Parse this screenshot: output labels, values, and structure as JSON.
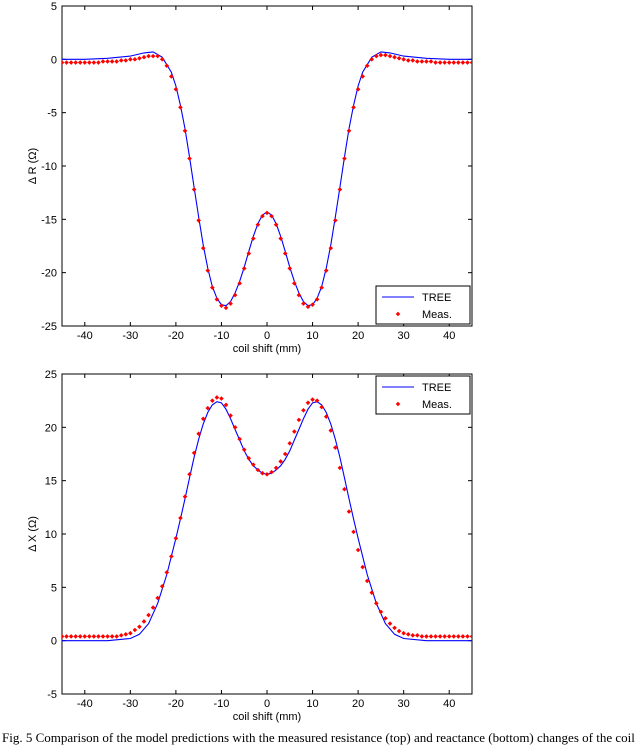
{
  "chart_data": [
    {
      "type": "line",
      "xlabel": "coil shift (mm)",
      "ylabel": "Δ R (Ω)",
      "xlim": [
        -45,
        45
      ],
      "ylim": [
        -25,
        5
      ],
      "xticks": [
        -40,
        -30,
        -20,
        -10,
        0,
        10,
        20,
        30,
        40
      ],
      "yticks": [
        -25,
        -20,
        -15,
        -10,
        -5,
        0,
        5
      ],
      "grid": false,
      "legend_position": "bottom-right",
      "series": [
        {
          "name": "TREE",
          "style": "line",
          "color": "#0000ff",
          "x": [
            -45,
            -40,
            -35,
            -30,
            -27,
            -25,
            -23,
            -21,
            -20,
            -19,
            -18,
            -17,
            -16,
            -15,
            -14,
            -13,
            -12,
            -11,
            -10,
            -9,
            -8,
            -7,
            -6,
            -5,
            -4,
            -3,
            -2,
            -1,
            0,
            1,
            2,
            3,
            4,
            5,
            6,
            7,
            8,
            9,
            10,
            11,
            12,
            13,
            14,
            15,
            16,
            17,
            18,
            19,
            20,
            21,
            23,
            25,
            27,
            30,
            35,
            40,
            45
          ],
          "y": [
            0.0,
            0.0,
            0.1,
            0.3,
            0.6,
            0.7,
            0.2,
            -1.2,
            -2.5,
            -4.3,
            -6.5,
            -9.2,
            -12.0,
            -14.8,
            -17.4,
            -19.6,
            -21.3,
            -22.4,
            -23.0,
            -23.1,
            -22.7,
            -21.9,
            -20.8,
            -19.5,
            -18.0,
            -16.6,
            -15.4,
            -14.6,
            -14.3,
            -14.6,
            -15.4,
            -16.6,
            -18.0,
            -19.5,
            -20.8,
            -21.9,
            -22.7,
            -23.1,
            -23.0,
            -22.4,
            -21.3,
            -19.6,
            -17.4,
            -14.8,
            -12.0,
            -9.2,
            -6.5,
            -4.3,
            -2.5,
            -1.2,
            0.2,
            0.7,
            0.6,
            0.3,
            0.1,
            0.0,
            0.0
          ]
        },
        {
          "name": "Meas.",
          "style": "marker",
          "color": "#ff0000",
          "x": [
            -45,
            -44,
            -43,
            -42,
            -41,
            -40,
            -39,
            -38,
            -37,
            -36,
            -35,
            -34,
            -33,
            -32,
            -31,
            -30,
            -29,
            -28,
            -27,
            -26,
            -25,
            -24,
            -23,
            -22,
            -21,
            -20,
            -19,
            -18,
            -17,
            -16,
            -15,
            -14,
            -13,
            -12,
            -11,
            -10,
            -9,
            -8,
            -7,
            -6,
            -5,
            -4,
            -3,
            -2,
            -1,
            0,
            1,
            2,
            3,
            4,
            5,
            6,
            7,
            8,
            9,
            10,
            11,
            12,
            13,
            14,
            15,
            16,
            17,
            18,
            19,
            20,
            21,
            22,
            23,
            24,
            25,
            26,
            27,
            28,
            29,
            30,
            31,
            32,
            33,
            34,
            35,
            36,
            37,
            38,
            39,
            40,
            41,
            42,
            43,
            44,
            45
          ],
          "y": [
            -0.3,
            -0.3,
            -0.3,
            -0.3,
            -0.3,
            -0.3,
            -0.3,
            -0.3,
            -0.3,
            -0.2,
            -0.2,
            -0.2,
            -0.2,
            -0.1,
            -0.1,
            0.0,
            0.0,
            0.1,
            0.2,
            0.3,
            0.3,
            0.3,
            0.0,
            -0.6,
            -1.6,
            -2.8,
            -4.5,
            -6.7,
            -9.3,
            -12.2,
            -15.1,
            -17.7,
            -19.8,
            -21.4,
            -22.5,
            -23.1,
            -23.3,
            -22.9,
            -22.1,
            -21.0,
            -19.6,
            -18.2,
            -16.8,
            -15.5,
            -14.7,
            -14.4,
            -14.7,
            -15.5,
            -16.8,
            -18.2,
            -19.6,
            -21.0,
            -22.1,
            -22.9,
            -23.2,
            -23.0,
            -22.5,
            -21.4,
            -19.8,
            -17.7,
            -15.1,
            -12.2,
            -9.3,
            -6.7,
            -4.5,
            -2.8,
            -1.6,
            -0.6,
            0.0,
            0.3,
            0.4,
            0.4,
            0.3,
            0.2,
            0.1,
            0.0,
            -0.1,
            -0.1,
            -0.2,
            -0.2,
            -0.2,
            -0.2,
            -0.3,
            -0.3,
            -0.3,
            -0.3,
            -0.3,
            -0.3,
            -0.3,
            -0.3,
            -0.3
          ]
        }
      ]
    },
    {
      "type": "line",
      "xlabel": "coil shift (mm)",
      "ylabel": "Δ X (Ω)",
      "xlim": [
        -45,
        45
      ],
      "ylim": [
        -5,
        25
      ],
      "xticks": [
        -40,
        -30,
        -20,
        -10,
        0,
        10,
        20,
        30,
        40
      ],
      "yticks": [
        -5,
        0,
        5,
        10,
        15,
        20,
        25
      ],
      "grid": false,
      "legend_position": "top-right",
      "series": [
        {
          "name": "TREE",
          "style": "line",
          "color": "#0000ff",
          "x": [
            -45,
            -40,
            -35,
            -30,
            -28,
            -26,
            -24,
            -22,
            -20,
            -19,
            -18,
            -17,
            -16,
            -15,
            -14,
            -13,
            -12,
            -11,
            -10,
            -9,
            -8,
            -7,
            -6,
            -5,
            -4,
            -3,
            -2,
            -1,
            0,
            1,
            2,
            3,
            4,
            5,
            6,
            7,
            8,
            9,
            10,
            11,
            12,
            13,
            14,
            15,
            16,
            17,
            18,
            19,
            20,
            22,
            24,
            26,
            28,
            30,
            35,
            40,
            45
          ],
          "y": [
            0.0,
            0.0,
            0.0,
            0.2,
            0.6,
            1.6,
            3.5,
            6.2,
            9.6,
            11.4,
            13.3,
            15.3,
            17.2,
            18.9,
            20.3,
            21.4,
            22.1,
            22.4,
            22.3,
            21.7,
            20.8,
            19.8,
            18.8,
            17.8,
            17.0,
            16.4,
            16.0,
            15.7,
            15.6,
            15.7,
            16.0,
            16.4,
            17.0,
            17.8,
            18.8,
            19.8,
            20.8,
            21.7,
            22.3,
            22.4,
            22.1,
            21.4,
            20.3,
            18.9,
            17.2,
            15.3,
            13.3,
            11.4,
            9.6,
            6.2,
            3.5,
            1.6,
            0.6,
            0.2,
            0.0,
            0.0,
            0.0
          ]
        },
        {
          "name": "Meas.",
          "style": "marker",
          "color": "#ff0000",
          "x": [
            -45,
            -44,
            -43,
            -42,
            -41,
            -40,
            -39,
            -38,
            -37,
            -36,
            -35,
            -34,
            -33,
            -32,
            -31,
            -30,
            -29,
            -28,
            -27,
            -26,
            -25,
            -24,
            -23,
            -22,
            -21,
            -20,
            -19,
            -18,
            -17,
            -16,
            -15,
            -14,
            -13,
            -12,
            -11,
            -10,
            -9,
            -8,
            -7,
            -6,
            -5,
            -4,
            -3,
            -2,
            -1,
            0,
            1,
            2,
            3,
            4,
            5,
            6,
            7,
            8,
            9,
            10,
            11,
            12,
            13,
            14,
            15,
            16,
            17,
            18,
            19,
            20,
            21,
            22,
            23,
            24,
            25,
            26,
            27,
            28,
            29,
            30,
            31,
            32,
            33,
            34,
            35,
            36,
            37,
            38,
            39,
            40,
            41,
            42,
            43,
            44,
            45
          ],
          "y": [
            0.4,
            0.4,
            0.4,
            0.4,
            0.4,
            0.4,
            0.4,
            0.4,
            0.4,
            0.4,
            0.4,
            0.4,
            0.4,
            0.5,
            0.6,
            0.7,
            1.0,
            1.3,
            1.8,
            2.4,
            3.1,
            4.0,
            5.1,
            6.4,
            7.9,
            9.6,
            11.5,
            13.5,
            15.6,
            17.6,
            19.4,
            20.8,
            21.8,
            22.5,
            22.8,
            22.7,
            22.1,
            21.1,
            20.0,
            18.9,
            17.9,
            17.1,
            16.5,
            16.0,
            15.7,
            15.6,
            15.8,
            16.2,
            16.8,
            17.5,
            18.5,
            19.6,
            20.7,
            21.6,
            22.3,
            22.6,
            22.5,
            21.9,
            21.0,
            19.7,
            18.1,
            16.2,
            14.2,
            12.1,
            10.2,
            8.5,
            6.9,
            5.6,
            4.5,
            3.5,
            2.7,
            2.1,
            1.6,
            1.2,
            0.9,
            0.7,
            0.6,
            0.5,
            0.5,
            0.4,
            0.4,
            0.4,
            0.4,
            0.4,
            0.4,
            0.4,
            0.4,
            0.4,
            0.4,
            0.4,
            0.4
          ]
        }
      ]
    }
  ],
  "caption": "Fig. 5 Comparison of the model predictions with the measured resistance (top) and reactance (bottom) changes of the coil"
}
